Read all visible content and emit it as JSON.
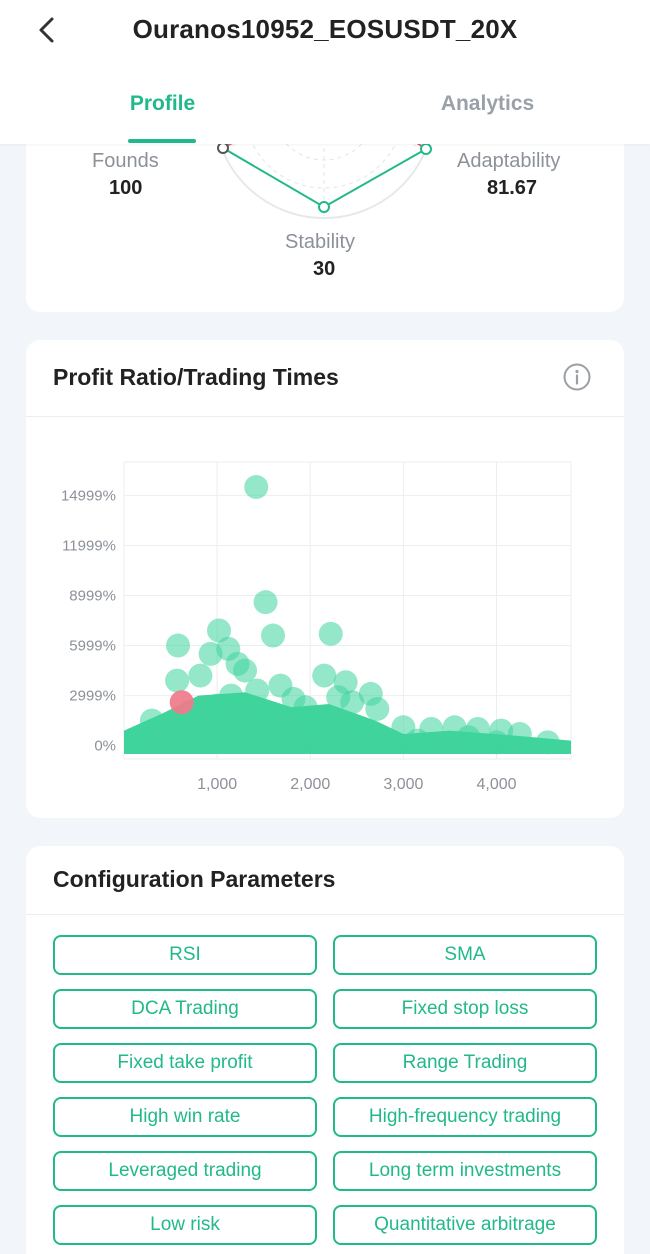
{
  "header": {
    "title": "Ouranos10952_EOSUSDT_20X",
    "tabs": [
      {
        "label": "Profile",
        "active": true
      },
      {
        "label": "Analytics",
        "active": false
      }
    ]
  },
  "radar": {
    "founds_label": "Founds",
    "founds_value": "100",
    "adaptability_label": "Adaptability",
    "adaptability_value": "81.67",
    "stability_label": "Stability",
    "stability_value": "30"
  },
  "chart_section": {
    "title": "Profit Ratio/Trading Times",
    "icon": "info-icon"
  },
  "chart_data": {
    "type": "scatter",
    "title": "",
    "xlabel": "",
    "ylabel": "",
    "xlim": [
      0,
      4800
    ],
    "ylim": [
      -800,
      17000
    ],
    "x_ticks": [
      1000,
      2000,
      3000,
      4000
    ],
    "x_tick_labels": [
      "1,000",
      "2,000",
      "3,000",
      "4,000"
    ],
    "y_ticks": [
      0,
      2999,
      5999,
      8999,
      11999,
      14999
    ],
    "y_tick_labels": [
      "0%",
      "2999%",
      "5999%",
      "8999%",
      "11999%",
      "14999%"
    ],
    "grid": true,
    "series": [
      {
        "color": "#3ed39c",
        "points": [
          [
            1420,
            15500
          ],
          [
            1520,
            8600
          ],
          [
            1600,
            6600
          ],
          [
            2220,
            6700
          ],
          [
            580,
            6000
          ],
          [
            1020,
            6900
          ],
          [
            1120,
            5800
          ],
          [
            930,
            5500
          ],
          [
            1300,
            4500
          ],
          [
            2150,
            4200
          ],
          [
            2380,
            3800
          ],
          [
            2650,
            3100
          ],
          [
            2720,
            2200
          ],
          [
            820,
            4200
          ],
          [
            1220,
            4900
          ],
          [
            1680,
            3600
          ],
          [
            570,
            3900
          ],
          [
            1430,
            3300
          ],
          [
            1820,
            2800
          ],
          [
            2450,
            2600
          ],
          [
            1950,
            2300
          ],
          [
            2300,
            2900
          ],
          [
            3000,
            1100
          ],
          [
            3300,
            1000
          ],
          [
            3550,
            1100
          ],
          [
            3800,
            1000
          ],
          [
            4050,
            900
          ],
          [
            4250,
            700
          ],
          [
            4550,
            200
          ],
          [
            300,
            1500
          ],
          [
            150,
            300
          ],
          [
            700,
            2000
          ],
          [
            1000,
            2400
          ],
          [
            1150,
            3000
          ],
          [
            1550,
            1700
          ],
          [
            2050,
            1500
          ],
          [
            2550,
            800
          ],
          [
            3150,
            300
          ],
          [
            3700,
            500
          ],
          [
            4000,
            200
          ]
        ]
      },
      {
        "color": "#f07a8a",
        "points": [
          [
            620,
            2600
          ]
        ]
      }
    ]
  },
  "config": {
    "title": "Configuration Parameters",
    "tags": [
      "RSI",
      "SMA",
      "DCA Trading",
      "Fixed stop loss",
      "Fixed take profit",
      "Range Trading",
      "High win rate",
      "High-frequency trading",
      "Leveraged trading",
      "Long term investments",
      "Low risk",
      "Quantitative arbitrage"
    ]
  }
}
